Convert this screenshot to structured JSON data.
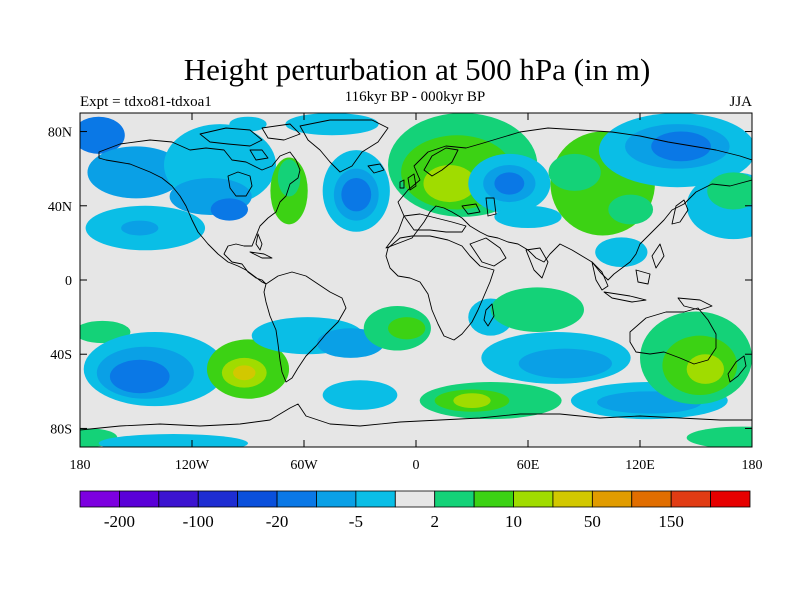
{
  "header": {
    "title": "Height perturbation at 500 hPa (in m)",
    "subtitle": "116kyr BP - 000kyr BP",
    "left_string": "Expt = tdxo81-tdxoa1",
    "right_string": "JJA"
  },
  "map": {
    "lon_range": [
      -180,
      180
    ],
    "lat_range": [
      -90,
      90
    ],
    "lat_ticks": [
      {
        "value": 80,
        "label": "80N"
      },
      {
        "value": 40,
        "label": "40N"
      },
      {
        "value": 0,
        "label": "0"
      },
      {
        "value": -40,
        "label": "40S"
      },
      {
        "value": -80,
        "label": "80S"
      }
    ],
    "lon_ticks": [
      {
        "value": -180,
        "label": "180"
      },
      {
        "value": -120,
        "label": "120W"
      },
      {
        "value": -60,
        "label": "60W"
      },
      {
        "value": 0,
        "label": "0"
      },
      {
        "value": 60,
        "label": "60E"
      },
      {
        "value": 120,
        "label": "120E"
      },
      {
        "value": 180,
        "label": "180"
      }
    ],
    "background_color": "#e6e6e6",
    "blobs": [
      {
        "lon": -170,
        "lat": 78,
        "rx": 14,
        "ry": 10,
        "level": 5
      },
      {
        "lon": -150,
        "lat": 58,
        "rx": 26,
        "ry": 14,
        "level": 6
      },
      {
        "lon": -145,
        "lat": 28,
        "rx": 32,
        "ry": 12,
        "level": 7
      },
      {
        "lon": -148,
        "lat": 28,
        "rx": 10,
        "ry": 4,
        "level": 6
      },
      {
        "lon": -105,
        "lat": 62,
        "rx": 30,
        "ry": 22,
        "level": 7
      },
      {
        "lon": -110,
        "lat": 45,
        "rx": 22,
        "ry": 10,
        "level": 6
      },
      {
        "lon": -100,
        "lat": 38,
        "rx": 10,
        "ry": 6,
        "level": 5
      },
      {
        "lon": -68,
        "lat": 48,
        "rx": 10,
        "ry": 18,
        "level": 10
      },
      {
        "lon": -68,
        "lat": 55,
        "rx": 6,
        "ry": 10,
        "level": 9
      },
      {
        "lon": -32,
        "lat": 48,
        "rx": 18,
        "ry": 22,
        "level": 7
      },
      {
        "lon": -32,
        "lat": 46,
        "rx": 12,
        "ry": 14,
        "level": 6
      },
      {
        "lon": -32,
        "lat": 46,
        "rx": 8,
        "ry": 9,
        "level": 5
      },
      {
        "lon": -45,
        "lat": 84,
        "rx": 25,
        "ry": 6,
        "level": 7
      },
      {
        "lon": -90,
        "lat": 84,
        "rx": 10,
        "ry": 4,
        "level": 7
      },
      {
        "lon": 25,
        "lat": 62,
        "rx": 40,
        "ry": 28,
        "level": 9
      },
      {
        "lon": 22,
        "lat": 58,
        "rx": 30,
        "ry": 20,
        "level": 10
      },
      {
        "lon": 18,
        "lat": 52,
        "rx": 14,
        "ry": 10,
        "level": 11
      },
      {
        "lon": 50,
        "lat": 52,
        "rx": 22,
        "ry": 16,
        "level": 7
      },
      {
        "lon": 50,
        "lat": 52,
        "rx": 14,
        "ry": 10,
        "level": 6
      },
      {
        "lon": 50,
        "lat": 52,
        "rx": 8,
        "ry": 6,
        "level": 5
      },
      {
        "lon": 60,
        "lat": 34,
        "rx": 18,
        "ry": 6,
        "level": 7
      },
      {
        "lon": 100,
        "lat": 52,
        "rx": 28,
        "ry": 28,
        "level": 10
      },
      {
        "lon": 85,
        "lat": 58,
        "rx": 14,
        "ry": 10,
        "level": 9
      },
      {
        "lon": 115,
        "lat": 38,
        "rx": 12,
        "ry": 8,
        "level": 9
      },
      {
        "lon": 140,
        "lat": 70,
        "rx": 42,
        "ry": 20,
        "level": 7
      },
      {
        "lon": 140,
        "lat": 72,
        "rx": 28,
        "ry": 12,
        "level": 6
      },
      {
        "lon": 142,
        "lat": 72,
        "rx": 16,
        "ry": 8,
        "level": 5
      },
      {
        "lon": 170,
        "lat": 40,
        "rx": 25,
        "ry": 18,
        "level": 7
      },
      {
        "lon": 170,
        "lat": 48,
        "rx": 14,
        "ry": 10,
        "level": 9
      },
      {
        "lon": 110,
        "lat": 15,
        "rx": 14,
        "ry": 8,
        "level": 7
      },
      {
        "lon": -168,
        "lat": -28,
        "rx": 15,
        "ry": 6,
        "level": 9
      },
      {
        "lon": -140,
        "lat": -48,
        "rx": 38,
        "ry": 20,
        "level": 7
      },
      {
        "lon": -145,
        "lat": -50,
        "rx": 26,
        "ry": 14,
        "level": 6
      },
      {
        "lon": -148,
        "lat": -52,
        "rx": 16,
        "ry": 9,
        "level": 5
      },
      {
        "lon": -90,
        "lat": -48,
        "rx": 22,
        "ry": 16,
        "level": 10
      },
      {
        "lon": -92,
        "lat": -50,
        "rx": 12,
        "ry": 8,
        "level": 11
      },
      {
        "lon": -92,
        "lat": -50,
        "rx": 6,
        "ry": 4,
        "level": 12
      },
      {
        "lon": -58,
        "lat": -30,
        "rx": 30,
        "ry": 10,
        "level": 7
      },
      {
        "lon": -35,
        "lat": -34,
        "rx": 18,
        "ry": 8,
        "level": 6
      },
      {
        "lon": -10,
        "lat": -26,
        "rx": 18,
        "ry": 12,
        "level": 9
      },
      {
        "lon": -5,
        "lat": -26,
        "rx": 10,
        "ry": 6,
        "level": 10
      },
      {
        "lon": -30,
        "lat": -62,
        "rx": 20,
        "ry": 8,
        "level": 7
      },
      {
        "lon": 40,
        "lat": -20,
        "rx": 12,
        "ry": 10,
        "level": 7
      },
      {
        "lon": 65,
        "lat": -16,
        "rx": 25,
        "ry": 12,
        "level": 9
      },
      {
        "lon": 75,
        "lat": -42,
        "rx": 40,
        "ry": 14,
        "level": 7
      },
      {
        "lon": 80,
        "lat": -45,
        "rx": 25,
        "ry": 8,
        "level": 6
      },
      {
        "lon": 40,
        "lat": -65,
        "rx": 38,
        "ry": 10,
        "level": 9
      },
      {
        "lon": 30,
        "lat": -65,
        "rx": 20,
        "ry": 6,
        "level": 10
      },
      {
        "lon": 30,
        "lat": -65,
        "rx": 10,
        "ry": 4,
        "level": 11
      },
      {
        "lon": 125,
        "lat": -65,
        "rx": 42,
        "ry": 10,
        "level": 7
      },
      {
        "lon": 125,
        "lat": -66,
        "rx": 28,
        "ry": 6,
        "level": 6
      },
      {
        "lon": 150,
        "lat": -42,
        "rx": 30,
        "ry": 25,
        "level": 9
      },
      {
        "lon": 152,
        "lat": -46,
        "rx": 20,
        "ry": 16,
        "level": 10
      },
      {
        "lon": 155,
        "lat": -48,
        "rx": 10,
        "ry": 8,
        "level": 11
      },
      {
        "lon": 175,
        "lat": -85,
        "rx": 30,
        "ry": 6,
        "level": 9
      },
      {
        "lon": -175,
        "lat": -85,
        "rx": 15,
        "ry": 5,
        "level": 9
      },
      {
        "lon": -130,
        "lat": -88,
        "rx": 40,
        "ry": 5,
        "level": 7
      }
    ]
  },
  "colorbar": {
    "colors": [
      "#7d00e0",
      "#5a00d8",
      "#3c14d0",
      "#1e2dd2",
      "#0a50dc",
      "#0a78e6",
      "#0aa0e6",
      "#0abee6",
      "#e6e6e6",
      "#14d278",
      "#3cd214",
      "#a0dc00",
      "#d2c800",
      "#e19c00",
      "#e16e00",
      "#e13c14",
      "#e60000"
    ],
    "labels": [
      {
        "slot": 1,
        "text": "-200"
      },
      {
        "slot": 3,
        "text": "-100"
      },
      {
        "slot": 5,
        "text": "-20"
      },
      {
        "slot": 7,
        "text": "-5"
      },
      {
        "slot": 9,
        "text": "2"
      },
      {
        "slot": 11,
        "text": "10"
      },
      {
        "slot": 13,
        "text": "50"
      },
      {
        "slot": 15,
        "text": "150"
      }
    ]
  }
}
